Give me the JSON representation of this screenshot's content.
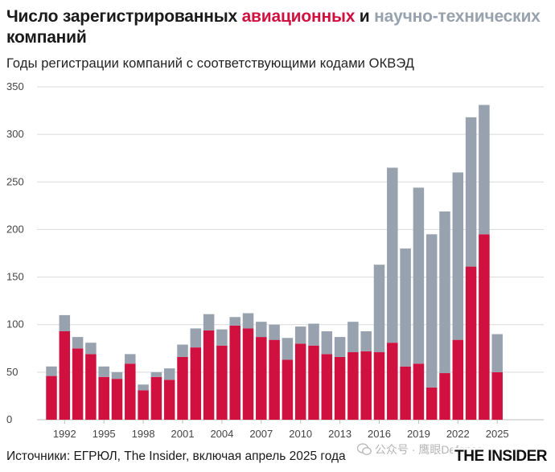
{
  "header": {
    "title_part1": "Число зарегистрированных ",
    "title_aviation": "авиационных",
    "title_part2": " и ",
    "title_scitech": "научно-технических",
    "title_part3": " компаний",
    "subtitle": "Годы регистрации компаний с соответствующими кодами ОКВЭД"
  },
  "footer": {
    "sources": "Источники: ЕГРЮЛ, The Insider, включая апрель 2025 года",
    "brand": "THE INSIDER",
    "watermark": "公众号 · 鹰眼Defence"
  },
  "colors": {
    "aviation": "#d0103f",
    "scitech": "#98a2ae",
    "grid": "#d9d9d9",
    "axis_text": "#444444"
  },
  "chart_data": {
    "type": "bar",
    "stacked": true,
    "x": [
      1991,
      1992,
      1993,
      1994,
      1995,
      1996,
      1997,
      1998,
      1999,
      2000,
      2001,
      2002,
      2003,
      2004,
      2005,
      2006,
      2007,
      2008,
      2009,
      2010,
      2011,
      2012,
      2013,
      2014,
      2015,
      2016,
      2017,
      2018,
      2019,
      2020,
      2021,
      2022,
      2023,
      2024,
      2025
    ],
    "x_tick_labels": [
      "1992",
      "1995",
      "1998",
      "2001",
      "2004",
      "2007",
      "2010",
      "2013",
      "2016",
      "2019",
      "2022",
      "2025"
    ],
    "series": [
      {
        "name": "авиационных",
        "color": "#d0103f",
        "values": [
          46,
          93,
          75,
          69,
          45,
          43,
          59,
          31,
          45,
          42,
          66,
          76,
          94,
          78,
          99,
          96,
          87,
          84,
          63,
          80,
          78,
          69,
          66,
          71,
          72,
          71,
          81,
          56,
          59,
          34,
          49,
          84,
          161,
          195,
          50
        ]
      },
      {
        "name": "научно-технических",
        "color": "#98a2ae",
        "values": [
          10,
          17,
          12,
          12,
          11,
          7,
          10,
          6,
          5,
          12,
          13,
          20,
          17,
          17,
          9,
          16,
          16,
          16,
          23,
          18,
          23,
          24,
          21,
          32,
          21,
          92,
          184,
          124,
          185,
          161,
          170,
          176,
          157,
          136,
          40
        ]
      }
    ],
    "ylim": [
      0,
      350
    ],
    "yticks": [
      0,
      50,
      100,
      150,
      200,
      250,
      300,
      350
    ],
    "grid": true,
    "legend": "in title"
  }
}
